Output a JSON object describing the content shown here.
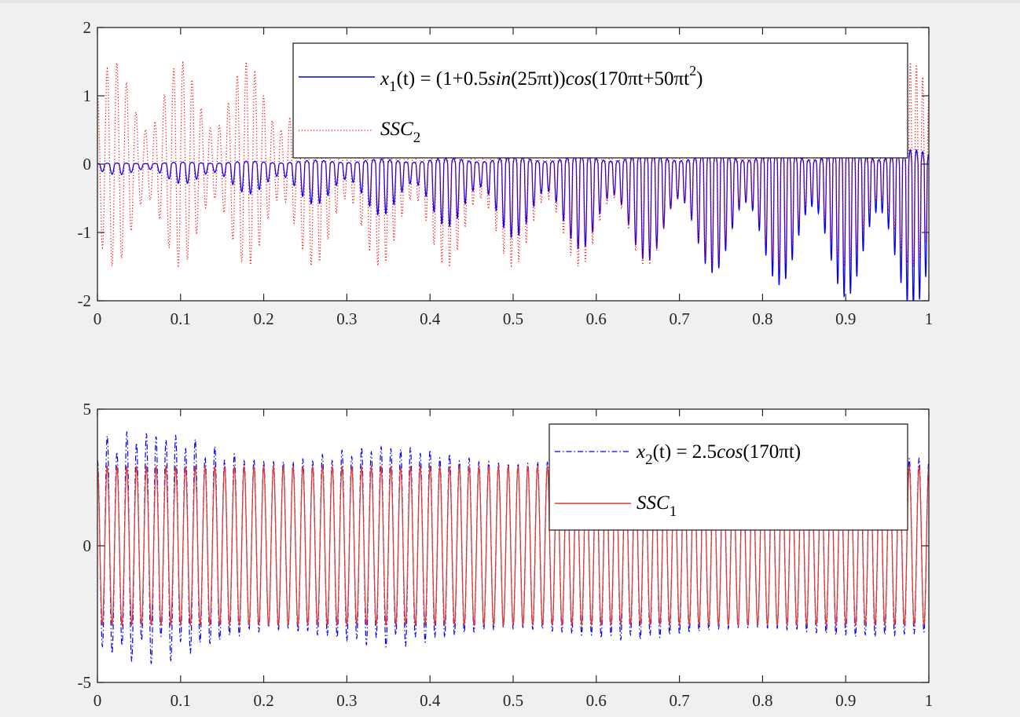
{
  "chart_data": [
    {
      "type": "line",
      "xlim": [
        0,
        1
      ],
      "ylim": [
        -2,
        2
      ],
      "xticks": [
        "0",
        "0.1",
        "0.2",
        "0.3",
        "0.4",
        "0.5",
        "0.6",
        "0.7",
        "0.8",
        "0.9",
        "1"
      ],
      "yticks": [
        "2",
        "1",
        "0",
        "-1",
        "-2"
      ],
      "legend_position": "top-right",
      "series": [
        {
          "name": "x1(t) = (1+0.5sin(25πt))cos(170πt+50πt^2)",
          "style": "solid",
          "color": "#0000ff",
          "model": "envelope growing from ~0.1 to ~1.4, mostly negative excursions",
          "amplitude_range": [
            0.1,
            1.4
          ]
        },
        {
          "name": "SSC2",
          "style": "dotted",
          "color": "#ff0000",
          "model": "(1+0.5sin(25πt))cos(170πt+50πt^2)",
          "amplitude_range": [
            0.5,
            1.5
          ]
        }
      ],
      "legend": {
        "x1_label": "x",
        "x1_sub": "1",
        "x1_rest": "(t) = (1+0.5",
        "sin": "sin",
        "mid": "(25πt))",
        "cos": "cos",
        "tail": "(170πt+50πt",
        "sup": "2",
        "close": ")",
        "ssc": "SSC",
        "ssc_sub": "2"
      }
    },
    {
      "type": "line",
      "xlim": [
        0,
        1
      ],
      "ylim": [
        -5,
        5
      ],
      "xticks": [
        "0",
        "0.1",
        "0.2",
        "0.3",
        "0.4",
        "0.5",
        "0.6",
        "0.7",
        "0.8",
        "0.9",
        "1"
      ],
      "yticks": [
        "5",
        "0",
        "-5"
      ],
      "legend_position": "top-right",
      "series": [
        {
          "name": "x2(t) = 2.5cos(170πt)",
          "style": "dashdot",
          "color": "#0000ff",
          "amplitude_range": [
            3,
            4.4
          ]
        },
        {
          "name": "SSC1",
          "style": "solid",
          "color": "#e03c31",
          "model": "2.9cos(170πt)",
          "amplitude": 2.9
        }
      ],
      "legend": {
        "x2_label": "x",
        "x2_sub": "2",
        "x2_rest": "(t) = 2.5",
        "cos": "cos",
        "tail": "(170πt)",
        "ssc": "SSC",
        "ssc_sub": "1"
      }
    }
  ]
}
